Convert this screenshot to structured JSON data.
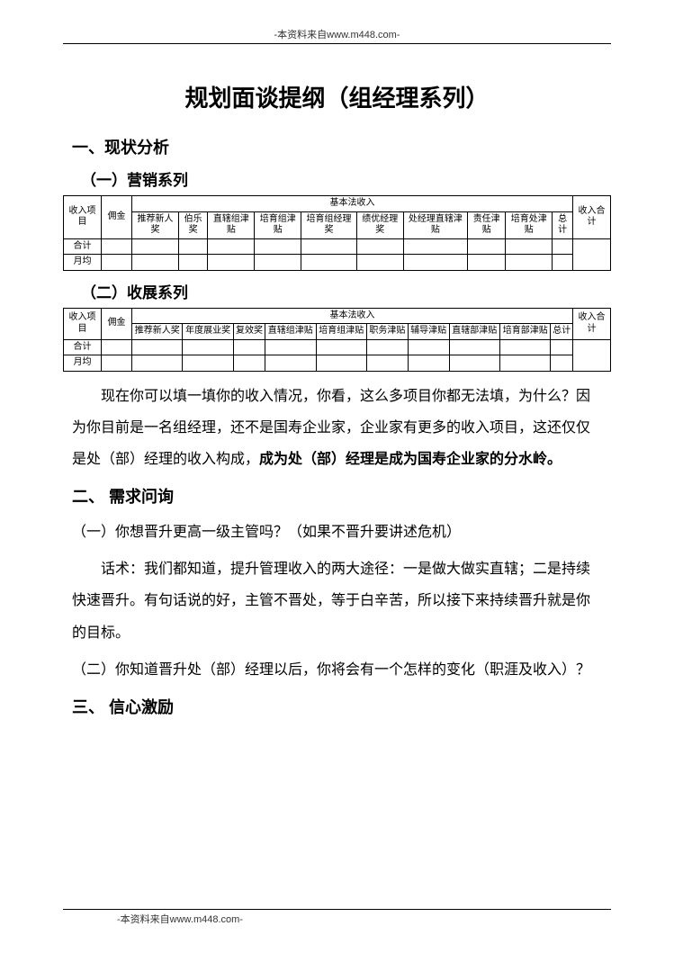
{
  "source_note": "-本资料来自www.m448.com-",
  "title": "规划面谈提纲（组经理系列）",
  "section1": {
    "heading": "一、现状分析",
    "sub1_heading": "（一）营销系列",
    "sub2_heading": "（二）收展系列"
  },
  "table1": {
    "row_header": "收入项目",
    "commission": "佣金",
    "group_header": "基本法收入",
    "cols": [
      "推荐新人奖",
      "伯乐奖",
      "直辖组津贴",
      "培育组津贴",
      "培育组经理奖",
      "绩优经理奖",
      "处经理直辖津贴",
      "责任津贴",
      "培育处津贴",
      "总计"
    ],
    "income_total": "收入合计",
    "row_labels": [
      "合计",
      "月均"
    ]
  },
  "table2": {
    "row_header": "收入项目",
    "commission": "佣金",
    "group_header": "基本法收入",
    "cols": [
      "推荐新人奖",
      "年度展业奖",
      "复效奖",
      "直辖组津贴",
      "培育组津贴",
      "职务津贴",
      "辅导津贴",
      "直辖部津贴",
      "培育部津贴",
      "总计"
    ],
    "income_total": "收入合计",
    "row_labels": [
      "合计",
      "月均"
    ]
  },
  "para1_a": "现在你可以填一填你的收入情况，你看，这么多项目你都无法填，为什么？因为你目前是一名组经理，还不是国寿企业家，企业家有更多的收入项目，这还仅仅是处（部）经理的收入构成，",
  "para1_b": "成为处（部）经理是成为国寿企业家的分水岭。",
  "section2": {
    "heading": "二、 需求问询",
    "item1": "（一）你想晋升更高一级主管吗？（如果不晋升要讲述危机）",
    "talk": "话术：我们都知道，提升管理收入的两大途径：一是做大做实直辖；二是持续快速晋升。有句话说的好，主管不晋处，等于白辛苦，所以接下来持续晋升就是你的目标。",
    "item2": "（二）你知道晋升处（部）经理以后，你将会有一个怎样的变化（职涯及收入）？"
  },
  "section3": {
    "heading": "三、 信心激励"
  }
}
